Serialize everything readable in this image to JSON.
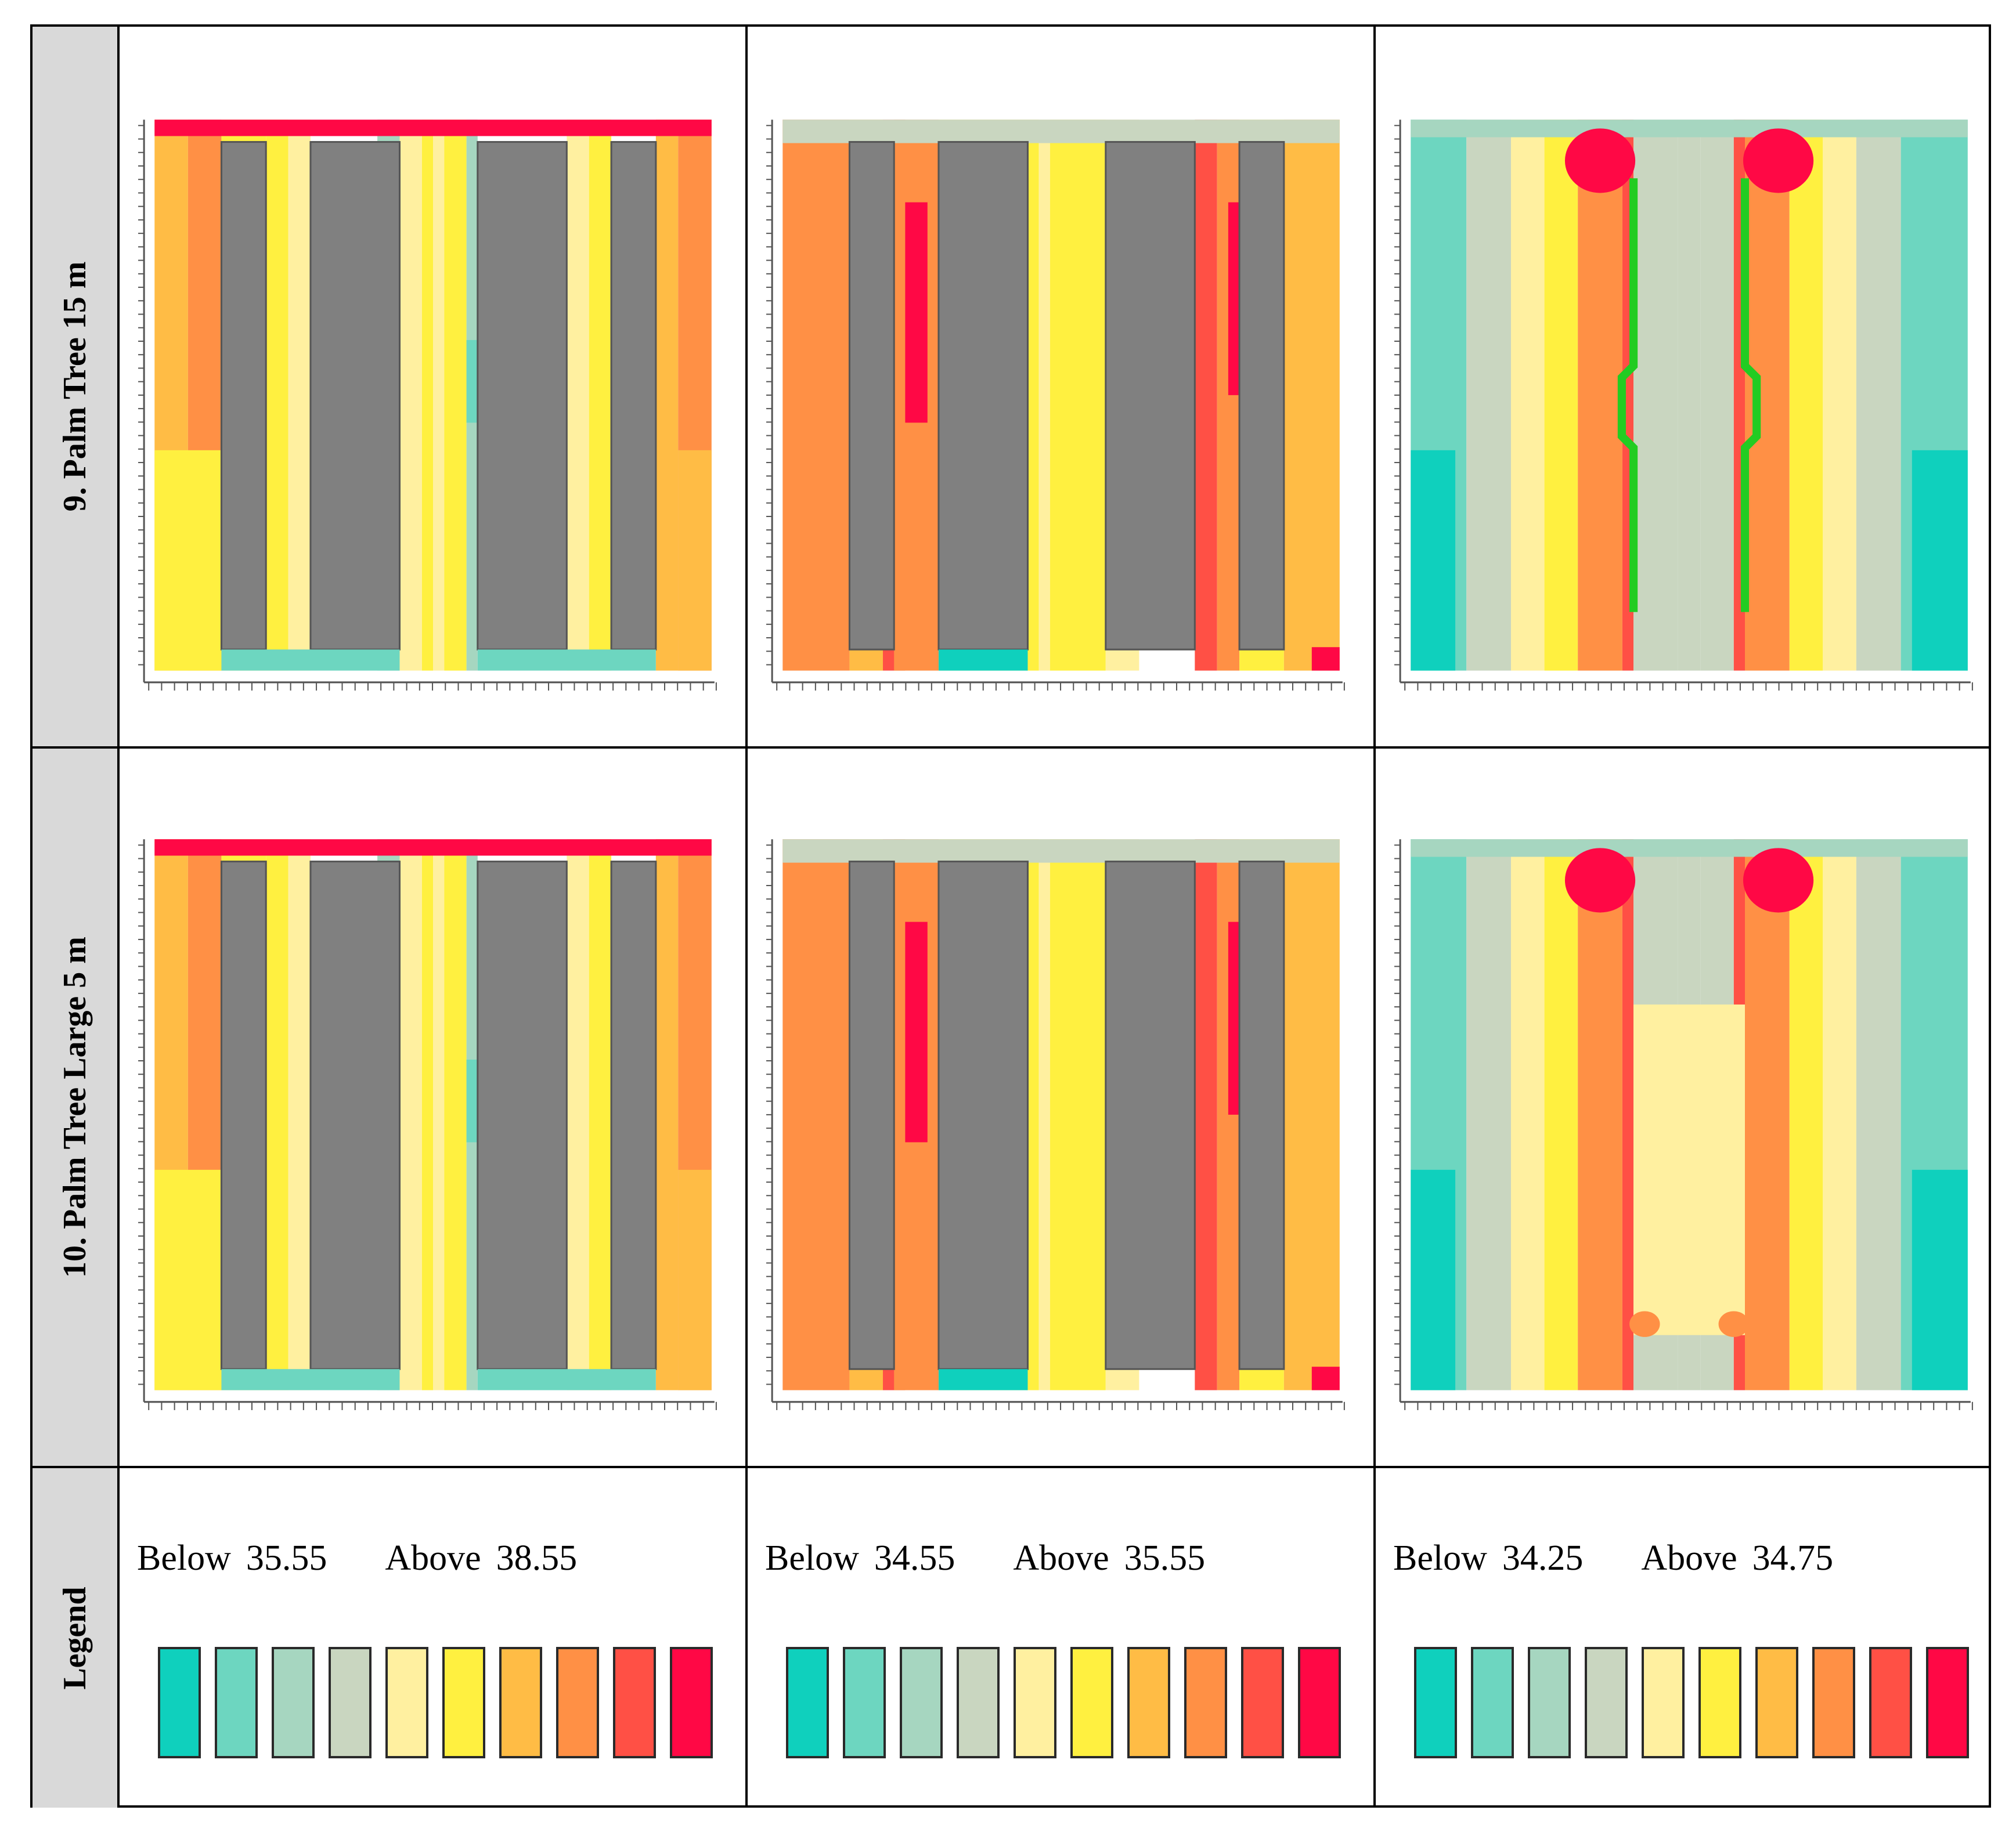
{
  "rows": [
    {
      "label": "9. Palm Tree 15 m"
    },
    {
      "label": "10. Palm Tree Large 5 m"
    },
    {
      "label": "Legend"
    }
  ],
  "legends": [
    {
      "below_label": "Below",
      "below_value": "35.55",
      "above_label": "Above",
      "above_value": "38.55"
    },
    {
      "below_label": "Below",
      "below_value": "34.55",
      "above_label": "Above",
      "above_value": "35.55"
    },
    {
      "below_label": "Below",
      "below_value": "34.25",
      "above_label": "Above",
      "above_value": "34.75"
    }
  ],
  "color_scale": [
    "#0fd0bd",
    "#6dd6c0",
    "#a6d6c0",
    "#c9d6c0",
    "#fff0a0",
    "#fff040",
    "#ffbc45",
    "#ff9045",
    "#ff5045",
    "#ff0845"
  ],
  "building_color": "#808080",
  "tree_outline_color": "#22cc22"
}
